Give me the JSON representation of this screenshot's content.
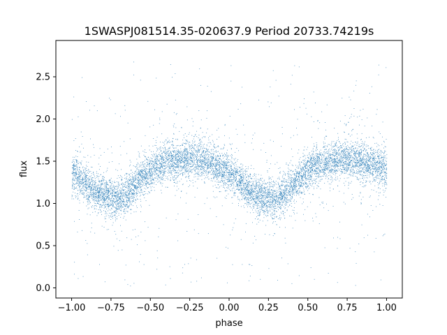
{
  "chart_data": {
    "type": "scatter",
    "title": "1SWASPJ081514.35-020637.9 Period 20733.74219s",
    "xlabel": "phase",
    "ylabel": "flux",
    "xlim": [
      -1.1,
      1.1
    ],
    "ylim": [
      -0.12,
      2.93
    ],
    "grid": false,
    "marker_color": "#1f77b4",
    "xticks": [
      {
        "value": -1.0,
        "label": "−1.00"
      },
      {
        "value": -0.75,
        "label": "−0.75"
      },
      {
        "value": -0.5,
        "label": "−0.50"
      },
      {
        "value": -0.25,
        "label": "−0.25"
      },
      {
        "value": 0.0,
        "label": "0.00"
      },
      {
        "value": 0.25,
        "label": "0.25"
      },
      {
        "value": 0.5,
        "label": "0.50"
      },
      {
        "value": 0.75,
        "label": "0.75"
      },
      {
        "value": 1.0,
        "label": "1.00"
      }
    ],
    "yticks": [
      {
        "value": 0.0,
        "label": "0.0"
      },
      {
        "value": 0.5,
        "label": "0.5"
      },
      {
        "value": 1.0,
        "label": "1.0"
      },
      {
        "value": 1.5,
        "label": "1.5"
      },
      {
        "value": 2.0,
        "label": "2.0"
      },
      {
        "value": 2.5,
        "label": "2.5"
      }
    ],
    "series": [
      {
        "x": [
          -1.0,
          -0.95,
          -0.9,
          -0.85,
          -0.8,
          -0.75,
          -0.7,
          -0.65,
          -0.6,
          -0.55,
          -0.5,
          -0.45,
          -0.4,
          -0.35,
          -0.3,
          -0.25,
          -0.2,
          -0.15,
          -0.1,
          -0.05,
          0.0,
          0.05,
          0.1,
          0.15,
          0.2,
          0.25,
          0.3,
          0.35,
          0.4,
          0.45,
          0.5,
          0.55,
          0.6,
          0.65,
          0.7,
          0.75,
          0.8,
          0.85,
          0.9,
          0.95,
          1.0
        ],
        "y": [
          1.38,
          1.3,
          1.22,
          1.15,
          1.1,
          1.07,
          1.06,
          1.12,
          1.22,
          1.32,
          1.4,
          1.45,
          1.48,
          1.5,
          1.52,
          1.53,
          1.52,
          1.5,
          1.47,
          1.42,
          1.36,
          1.28,
          1.2,
          1.13,
          1.08,
          1.06,
          1.06,
          1.12,
          1.22,
          1.32,
          1.4,
          1.45,
          1.48,
          1.5,
          1.52,
          1.53,
          1.52,
          1.5,
          1.47,
          1.44,
          1.4
        ]
      }
    ]
  }
}
